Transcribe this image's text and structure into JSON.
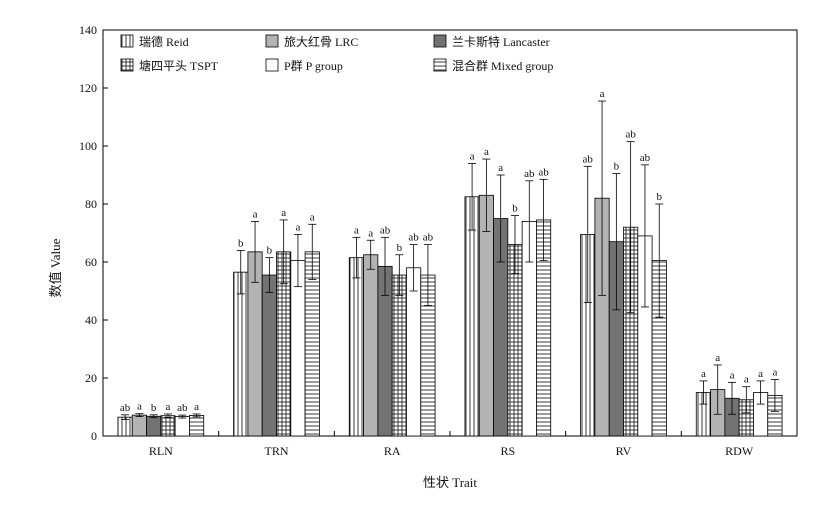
{
  "chart_data": {
    "type": "bar",
    "xlabel": "性状 Trait",
    "ylabel": "数值 Value",
    "ylim": [
      0,
      140
    ],
    "yticks": [
      0,
      20,
      40,
      60,
      80,
      100,
      120,
      140
    ],
    "grid": false,
    "legend_position": "top-left",
    "categories": [
      "RLN",
      "TRN",
      "RA",
      "RS",
      "RV",
      "RDW"
    ],
    "series": [
      {
        "name": "瑞德 Reid",
        "pattern": "vertical-lines",
        "values": [
          6.5,
          56.5,
          61.5,
          82.5,
          69.5,
          15
        ],
        "error": [
          0.8,
          7.5,
          7,
          11.5,
          23.5,
          4
        ],
        "letters": [
          "ab",
          "b",
          "a",
          "a",
          "ab",
          "a"
        ]
      },
      {
        "name": "旅大红骨 LRC",
        "pattern": "light-gray",
        "values": [
          7.2,
          63.5,
          62.5,
          83,
          82,
          16
        ],
        "error": [
          0.5,
          10.5,
          5,
          12.5,
          33.5,
          8.5
        ],
        "letters": [
          "a",
          "a",
          "a",
          "a",
          "a",
          "a"
        ]
      },
      {
        "name": "兰卡斯特 Lancaster",
        "pattern": "dark-gray",
        "values": [
          6.8,
          55.5,
          58.5,
          75,
          67,
          13
        ],
        "error": [
          0.5,
          6,
          10,
          15,
          23.5,
          5.5
        ],
        "letters": [
          "b",
          "b",
          "ab",
          "a",
          "b",
          "a"
        ]
      },
      {
        "name": "塘四平头 TSPT",
        "pattern": "grid",
        "values": [
          7,
          63.5,
          55.5,
          66,
          72,
          12.5
        ],
        "error": [
          0.6,
          11,
          7,
          10,
          29.5,
          4.5
        ],
        "letters": [
          "a",
          "a",
          "b",
          "b",
          "ab",
          "a"
        ]
      },
      {
        "name": "P群 P group",
        "pattern": "white",
        "values": [
          6.7,
          60.5,
          58,
          74,
          69,
          15
        ],
        "error": [
          0.5,
          9,
          8,
          14,
          24.5,
          4
        ],
        "letters": [
          "ab",
          "a",
          "ab",
          "ab",
          "ab",
          "a"
        ]
      },
      {
        "name": "混合群 Mixed group",
        "pattern": "horizontal-lines",
        "values": [
          7.1,
          63.5,
          55.5,
          74.5,
          60.5,
          14
        ],
        "error": [
          0.5,
          9.5,
          10.5,
          14,
          19.5,
          5.5
        ],
        "letters": [
          "a",
          "a",
          "ab",
          "ab",
          "b",
          "a"
        ]
      }
    ]
  }
}
